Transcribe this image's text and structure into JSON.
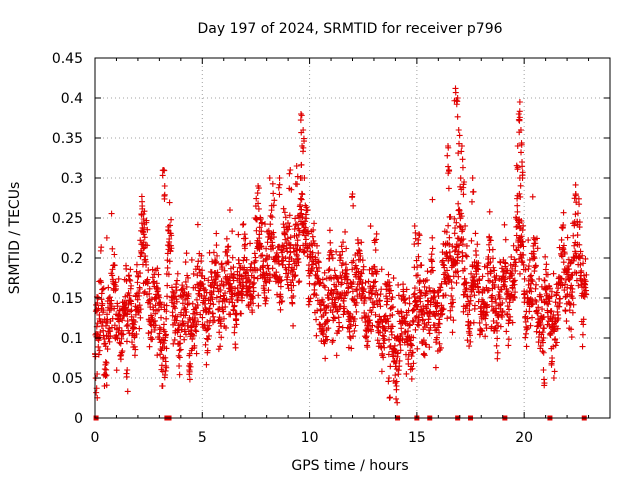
{
  "chart_data": {
    "type": "scatter",
    "title": "Day 197 of 2024, SRMTID for receiver p796",
    "xlabel": "GPS time / hours",
    "ylabel": "SRMTID / TECUs",
    "xlim": [
      0,
      24
    ],
    "ylim": [
      0,
      0.45
    ],
    "xticks": [
      0,
      5,
      10,
      15,
      20
    ],
    "xtick_labels": [
      "0",
      "5",
      "10",
      "15",
      "20"
    ],
    "yticks": [
      0,
      0.05,
      0.1,
      0.15,
      0.2,
      0.25,
      0.3,
      0.35,
      0.4,
      0.45
    ],
    "ytick_labels": [
      "0",
      "0.05",
      "0.1",
      "0.15",
      "0.2",
      "0.25",
      "0.3",
      "0.35",
      "0.4",
      "0.45"
    ],
    "grid": true,
    "marker": "plus",
    "color": "#e00000",
    "x_end": 22.9,
    "zero_value_times": [
      0.05,
      3.35,
      3.45,
      14.1,
      15.0,
      15.6,
      16.9,
      17.5,
      19.1,
      21.2,
      22.8
    ],
    "trend": [
      [
        0.0,
        0.075
      ],
      [
        0.3,
        0.12
      ],
      [
        0.8,
        0.135
      ],
      [
        1.2,
        0.13
      ],
      [
        1.6,
        0.125
      ],
      [
        2.0,
        0.145
      ],
      [
        2.3,
        0.2
      ],
      [
        2.7,
        0.14
      ],
      [
        3.0,
        0.12
      ],
      [
        3.3,
        0.09
      ],
      [
        3.4,
        0.23
      ],
      [
        3.6,
        0.14
      ],
      [
        4.0,
        0.125
      ],
      [
        4.4,
        0.12
      ],
      [
        4.8,
        0.14
      ],
      [
        5.2,
        0.145
      ],
      [
        5.6,
        0.155
      ],
      [
        6.0,
        0.16
      ],
      [
        6.4,
        0.15
      ],
      [
        6.8,
        0.17
      ],
      [
        7.2,
        0.185
      ],
      [
        7.6,
        0.19
      ],
      [
        8.0,
        0.2
      ],
      [
        8.4,
        0.2
      ],
      [
        8.8,
        0.2
      ],
      [
        9.0,
        0.185
      ],
      [
        9.4,
        0.22
      ],
      [
        9.8,
        0.24
      ],
      [
        10.0,
        0.22
      ],
      [
        10.3,
        0.155
      ],
      [
        10.8,
        0.14
      ],
      [
        11.3,
        0.165
      ],
      [
        11.8,
        0.14
      ],
      [
        12.2,
        0.18
      ],
      [
        12.6,
        0.14
      ],
      [
        13.0,
        0.155
      ],
      [
        13.4,
        0.13
      ],
      [
        13.8,
        0.11
      ],
      [
        14.1,
        0.09
      ],
      [
        14.5,
        0.11
      ],
      [
        15.0,
        0.13
      ],
      [
        15.5,
        0.14
      ],
      [
        15.9,
        0.13
      ],
      [
        16.3,
        0.165
      ],
      [
        16.7,
        0.2
      ],
      [
        17.0,
        0.22
      ],
      [
        17.3,
        0.17
      ],
      [
        17.7,
        0.165
      ],
      [
        18.1,
        0.16
      ],
      [
        18.5,
        0.15
      ],
      [
        18.9,
        0.15
      ],
      [
        19.2,
        0.14
      ],
      [
        19.5,
        0.2
      ],
      [
        19.8,
        0.22
      ],
      [
        20.1,
        0.17
      ],
      [
        20.5,
        0.145
      ],
      [
        20.9,
        0.14
      ],
      [
        21.3,
        0.12
      ],
      [
        21.7,
        0.16
      ],
      [
        22.1,
        0.18
      ],
      [
        22.5,
        0.2
      ],
      [
        22.9,
        0.16
      ]
    ],
    "spread": 0.045,
    "spikes": [
      {
        "x": 3.2,
        "y": 0.31
      },
      {
        "x": 3.25,
        "y": 0.29
      },
      {
        "x": 2.2,
        "y": 0.265
      },
      {
        "x": 2.25,
        "y": 0.255
      },
      {
        "x": 9.6,
        "y": 0.38
      },
      {
        "x": 9.7,
        "y": 0.36
      },
      {
        "x": 9.65,
        "y": 0.34
      },
      {
        "x": 9.4,
        "y": 0.315
      },
      {
        "x": 9.1,
        "y": 0.31
      },
      {
        "x": 8.6,
        "y": 0.3
      },
      {
        "x": 7.6,
        "y": 0.29
      },
      {
        "x": 16.8,
        "y": 0.412
      },
      {
        "x": 16.9,
        "y": 0.4
      },
      {
        "x": 16.95,
        "y": 0.36
      },
      {
        "x": 17.1,
        "y": 0.34
      },
      {
        "x": 16.45,
        "y": 0.34
      },
      {
        "x": 16.5,
        "y": 0.31
      },
      {
        "x": 17.2,
        "y": 0.295
      },
      {
        "x": 17.6,
        "y": 0.3
      },
      {
        "x": 19.8,
        "y": 0.395
      },
      {
        "x": 19.75,
        "y": 0.38
      },
      {
        "x": 19.85,
        "y": 0.36
      },
      {
        "x": 19.7,
        "y": 0.34
      },
      {
        "x": 19.9,
        "y": 0.32
      },
      {
        "x": 19.8,
        "y": 0.3
      },
      {
        "x": 22.4,
        "y": 0.28
      },
      {
        "x": 12.0,
        "y": 0.28
      },
      {
        "x": 14.9,
        "y": 0.24
      },
      {
        "x": 15.1,
        "y": 0.23
      },
      {
        "x": 14.05,
        "y": 0.04
      },
      {
        "x": 13.7,
        "y": 0.05
      },
      {
        "x": 3.3,
        "y": 0.065
      },
      {
        "x": 4.4,
        "y": 0.06
      },
      {
        "x": 20.9,
        "y": 0.06
      },
      {
        "x": 21.3,
        "y": 0.075
      },
      {
        "x": 0.1,
        "y": 0.055
      },
      {
        "x": 1.5,
        "y": 0.06
      },
      {
        "x": 0.5,
        "y": 0.07
      }
    ]
  }
}
